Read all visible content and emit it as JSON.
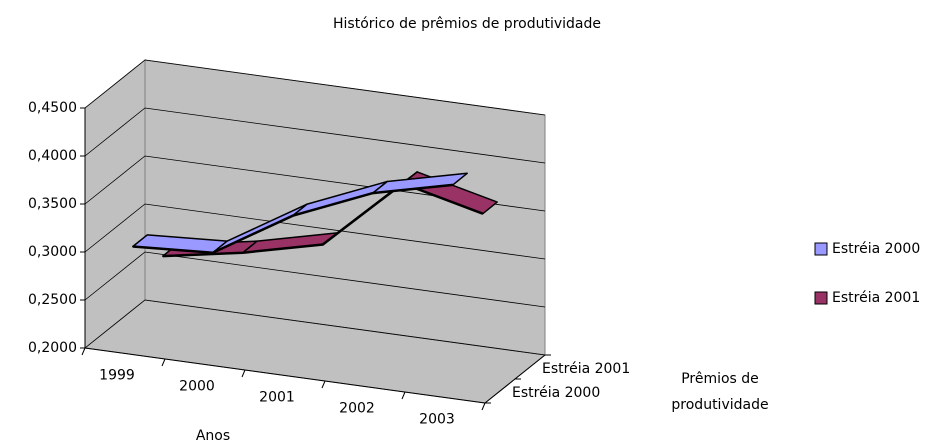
{
  "chart_data": {
    "type": "line3d",
    "title": "Histórico de prêmios de produtividade",
    "x_label": "Anos",
    "depth_label": "Prêmios de produtividade",
    "categories": [
      "1999",
      "2000",
      "2001",
      "2002",
      "2003"
    ],
    "series": [
      {
        "name": "Estréia 2000",
        "color": "#9999ff",
        "values": [
          0.305,
          0.31,
          0.36,
          0.395,
          0.415
        ]
      },
      {
        "name": "Estréia 2001",
        "color": "#993366",
        "values": [
          0.27,
          0.285,
          0.305,
          0.38,
          0.36
        ]
      }
    ],
    "ylim": [
      0.2,
      0.45
    ],
    "yticks": [
      {
        "value": 0.2,
        "label": "0,2000"
      },
      {
        "value": 0.25,
        "label": "0,2500"
      },
      {
        "value": 0.3,
        "label": "0,3000"
      },
      {
        "value": 0.35,
        "label": "0,3500"
      },
      {
        "value": 0.4,
        "label": "0,4000"
      },
      {
        "value": 0.45,
        "label": "0,4500"
      }
    ],
    "grid": true,
    "legend": "right"
  }
}
